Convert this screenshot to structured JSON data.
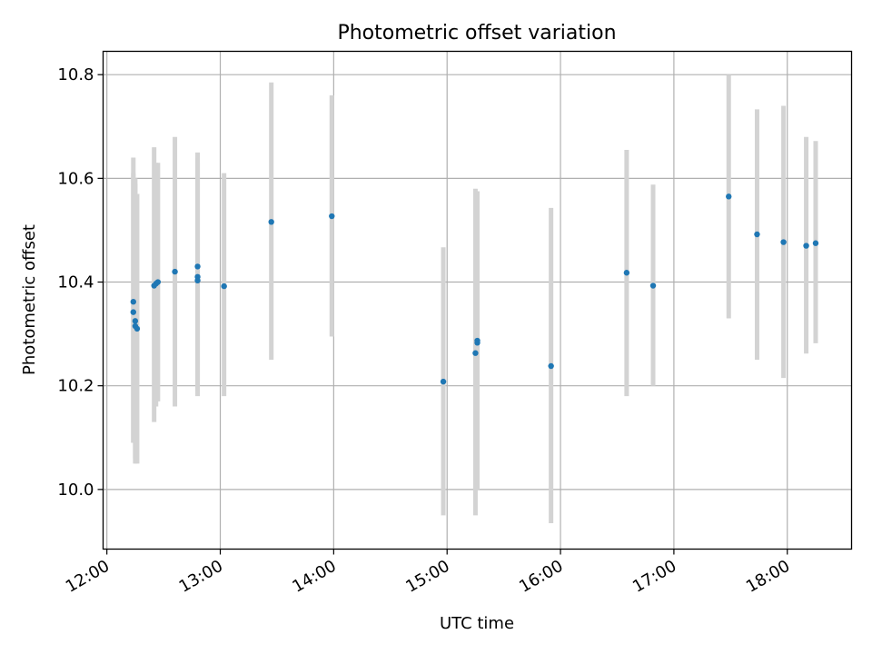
{
  "chart_data": {
    "type": "scatter",
    "title": "Photometric offset variation",
    "xlabel": "UTC time",
    "ylabel": "Photometric offset",
    "xlim": [
      "11:58",
      "18:34"
    ],
    "ylim": [
      9.885,
      10.845
    ],
    "x_ticks": [
      "12:00",
      "13:00",
      "14:00",
      "15:00",
      "16:00",
      "17:00",
      "18:00"
    ],
    "y_ticks": [
      "10.0",
      "10.2",
      "10.4",
      "10.6",
      "10.8"
    ],
    "grid": true,
    "series": [
      {
        "color": "#1f77b4",
        "errorbar_color": "#d3d3d3",
        "points": [
          {
            "x": "12:14",
            "y": 10.362,
            "ylo": 10.09,
            "yhi": 10.64
          },
          {
            "x": "12:14",
            "y": 10.342,
            "ylo": 10.09,
            "yhi": 10.61
          },
          {
            "x": "12:15",
            "y": 10.325,
            "ylo": 10.06,
            "yhi": 10.6
          },
          {
            "x": "12:15",
            "y": 10.315,
            "ylo": 10.05,
            "yhi": 10.59
          },
          {
            "x": "12:16",
            "y": 10.31,
            "ylo": 10.05,
            "yhi": 10.57
          },
          {
            "x": "12:25",
            "y": 10.393,
            "ylo": 10.13,
            "yhi": 10.66
          },
          {
            "x": "12:26",
            "y": 10.397,
            "ylo": 10.16,
            "yhi": 10.63
          },
          {
            "x": "12:27",
            "y": 10.4,
            "ylo": 10.17,
            "yhi": 10.63
          },
          {
            "x": "12:36",
            "y": 10.42,
            "ylo": 10.16,
            "yhi": 10.68
          },
          {
            "x": "12:48",
            "y": 10.43,
            "ylo": 10.21,
            "yhi": 10.65
          },
          {
            "x": "12:48",
            "y": 10.41,
            "ylo": 10.19,
            "yhi": 10.64
          },
          {
            "x": "12:48",
            "y": 10.403,
            "ylo": 10.18,
            "yhi": 10.63
          },
          {
            "x": "13:02",
            "y": 10.392,
            "ylo": 10.18,
            "yhi": 10.61
          },
          {
            "x": "13:27",
            "y": 10.516,
            "ylo": 10.25,
            "yhi": 10.785
          },
          {
            "x": "13:59",
            "y": 10.527,
            "ylo": 10.295,
            "yhi": 10.76
          },
          {
            "x": "14:58",
            "y": 10.208,
            "ylo": 9.95,
            "yhi": 10.467
          },
          {
            "x": "15:15",
            "y": 10.263,
            "ylo": 9.95,
            "yhi": 10.58
          },
          {
            "x": "15:16",
            "y": 10.283,
            "ylo": 10.0,
            "yhi": 10.575
          },
          {
            "x": "15:16",
            "y": 10.287,
            "ylo": 10.0,
            "yhi": 10.575
          },
          {
            "x": "15:55",
            "y": 10.238,
            "ylo": 9.935,
            "yhi": 10.543
          },
          {
            "x": "16:35",
            "y": 10.418,
            "ylo": 10.18,
            "yhi": 10.655
          },
          {
            "x": "16:49",
            "y": 10.393,
            "ylo": 10.2,
            "yhi": 10.588
          },
          {
            "x": "17:29",
            "y": 10.565,
            "ylo": 10.33,
            "yhi": 10.8
          },
          {
            "x": "17:44",
            "y": 10.492,
            "ylo": 10.25,
            "yhi": 10.733
          },
          {
            "x": "17:58",
            "y": 10.477,
            "ylo": 10.215,
            "yhi": 10.74
          },
          {
            "x": "18:10",
            "y": 10.47,
            "ylo": 10.262,
            "yhi": 10.68
          },
          {
            "x": "18:15",
            "y": 10.475,
            "ylo": 10.282,
            "yhi": 10.672
          }
        ]
      }
    ]
  }
}
